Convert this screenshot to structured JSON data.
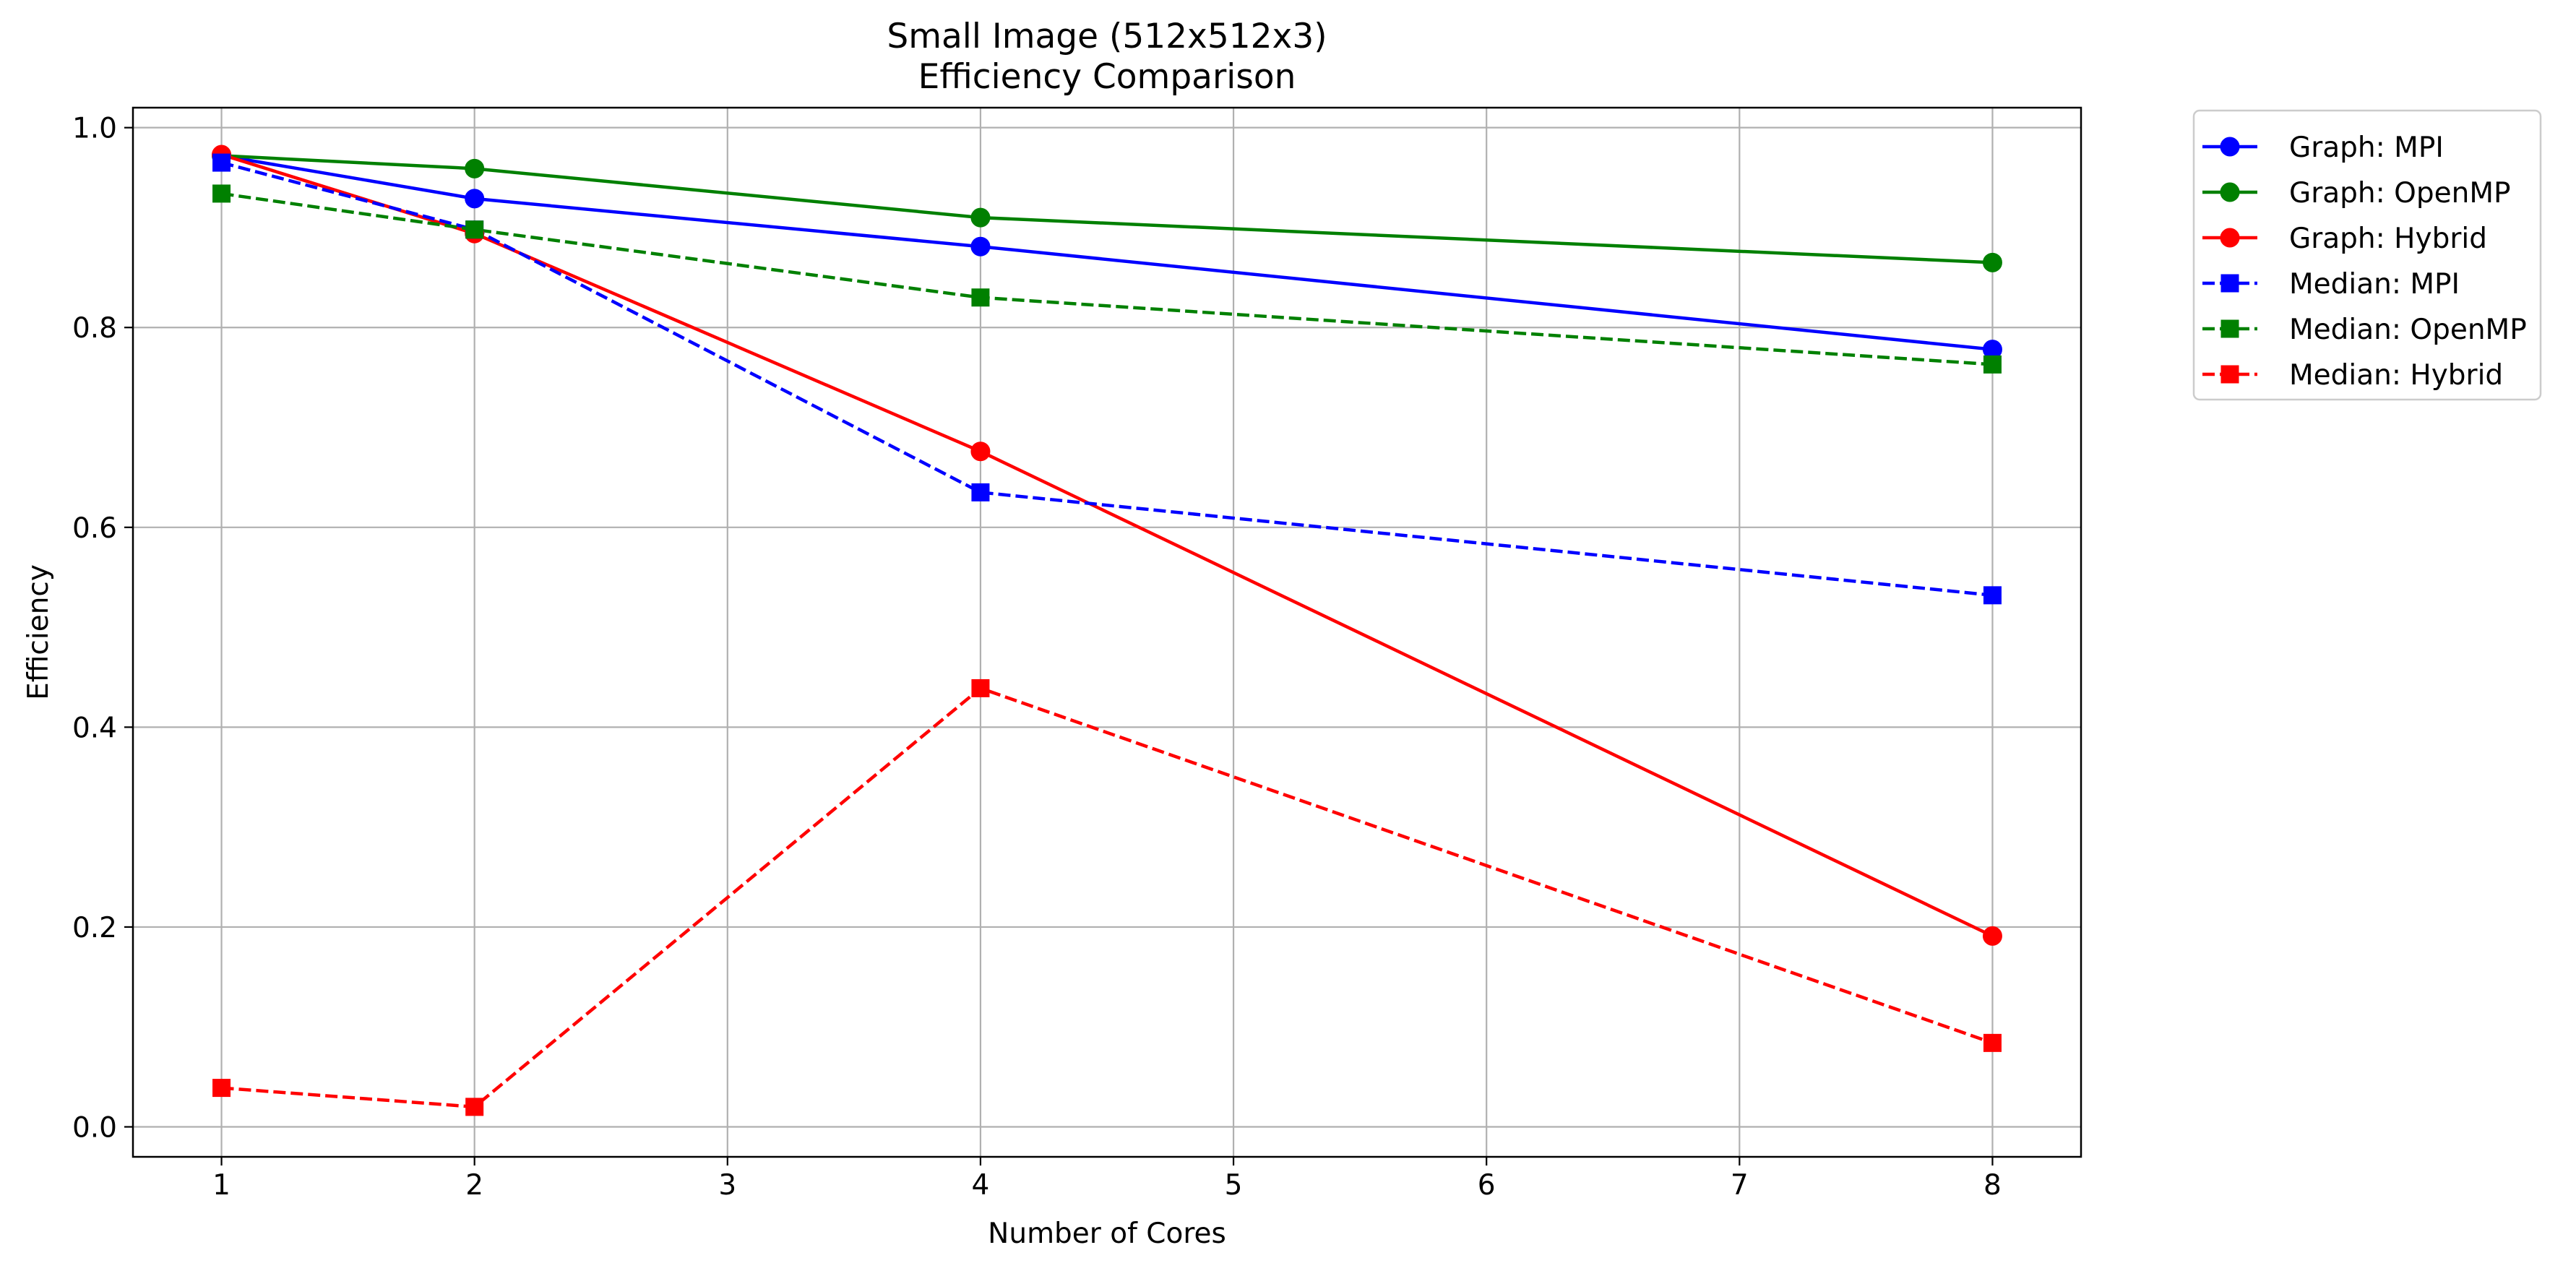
{
  "chart_data": {
    "type": "line",
    "title": [
      "Small Image (512x512x3)",
      "Efficiency Comparison"
    ],
    "xlabel": "Number of Cores",
    "ylabel": "Efficiency",
    "xlim": [
      0.65,
      8.35
    ],
    "ylim": [
      -0.03,
      1.02
    ],
    "xticks": [
      1,
      2,
      3,
      4,
      5,
      6,
      7,
      8
    ],
    "yticks": [
      0.0,
      0.2,
      0.4,
      0.6,
      0.8,
      1.0
    ],
    "ytick_labels": [
      "0.0",
      "0.2",
      "0.4",
      "0.6",
      "0.8",
      "1.0"
    ],
    "grid": true,
    "legend_position": "outside-top-right",
    "series": [
      {
        "name": "Graph: MPI",
        "color": "#0000ff",
        "linestyle": "solid",
        "marker": "circle",
        "x": [
          1,
          2,
          4,
          8
        ],
        "values": [
          0.972,
          0.929,
          0.881,
          0.778
        ]
      },
      {
        "name": "Graph: OpenMP",
        "color": "#008000",
        "linestyle": "solid",
        "marker": "circle",
        "x": [
          1,
          2,
          4,
          8
        ],
        "values": [
          0.972,
          0.959,
          0.91,
          0.865
        ]
      },
      {
        "name": "Graph: Hybrid",
        "color": "#ff0000",
        "linestyle": "solid",
        "marker": "circle",
        "x": [
          1,
          2,
          4,
          8
        ],
        "values": [
          0.973,
          0.894,
          0.676,
          0.191
        ]
      },
      {
        "name": "Median: MPI",
        "color": "#0000ff",
        "linestyle": "dashed",
        "marker": "square",
        "x": [
          1,
          2,
          4,
          8
        ],
        "values": [
          0.965,
          0.898,
          0.635,
          0.532
        ]
      },
      {
        "name": "Median: OpenMP",
        "color": "#008000",
        "linestyle": "dashed",
        "marker": "square",
        "x": [
          1,
          2,
          4,
          8
        ],
        "values": [
          0.934,
          0.898,
          0.83,
          0.763
        ]
      },
      {
        "name": "Median: Hybrid",
        "color": "#ff0000",
        "linestyle": "dashed",
        "marker": "square",
        "x": [
          1,
          2,
          4,
          8
        ],
        "values": [
          0.039,
          0.02,
          0.439,
          0.084
        ]
      }
    ]
  }
}
